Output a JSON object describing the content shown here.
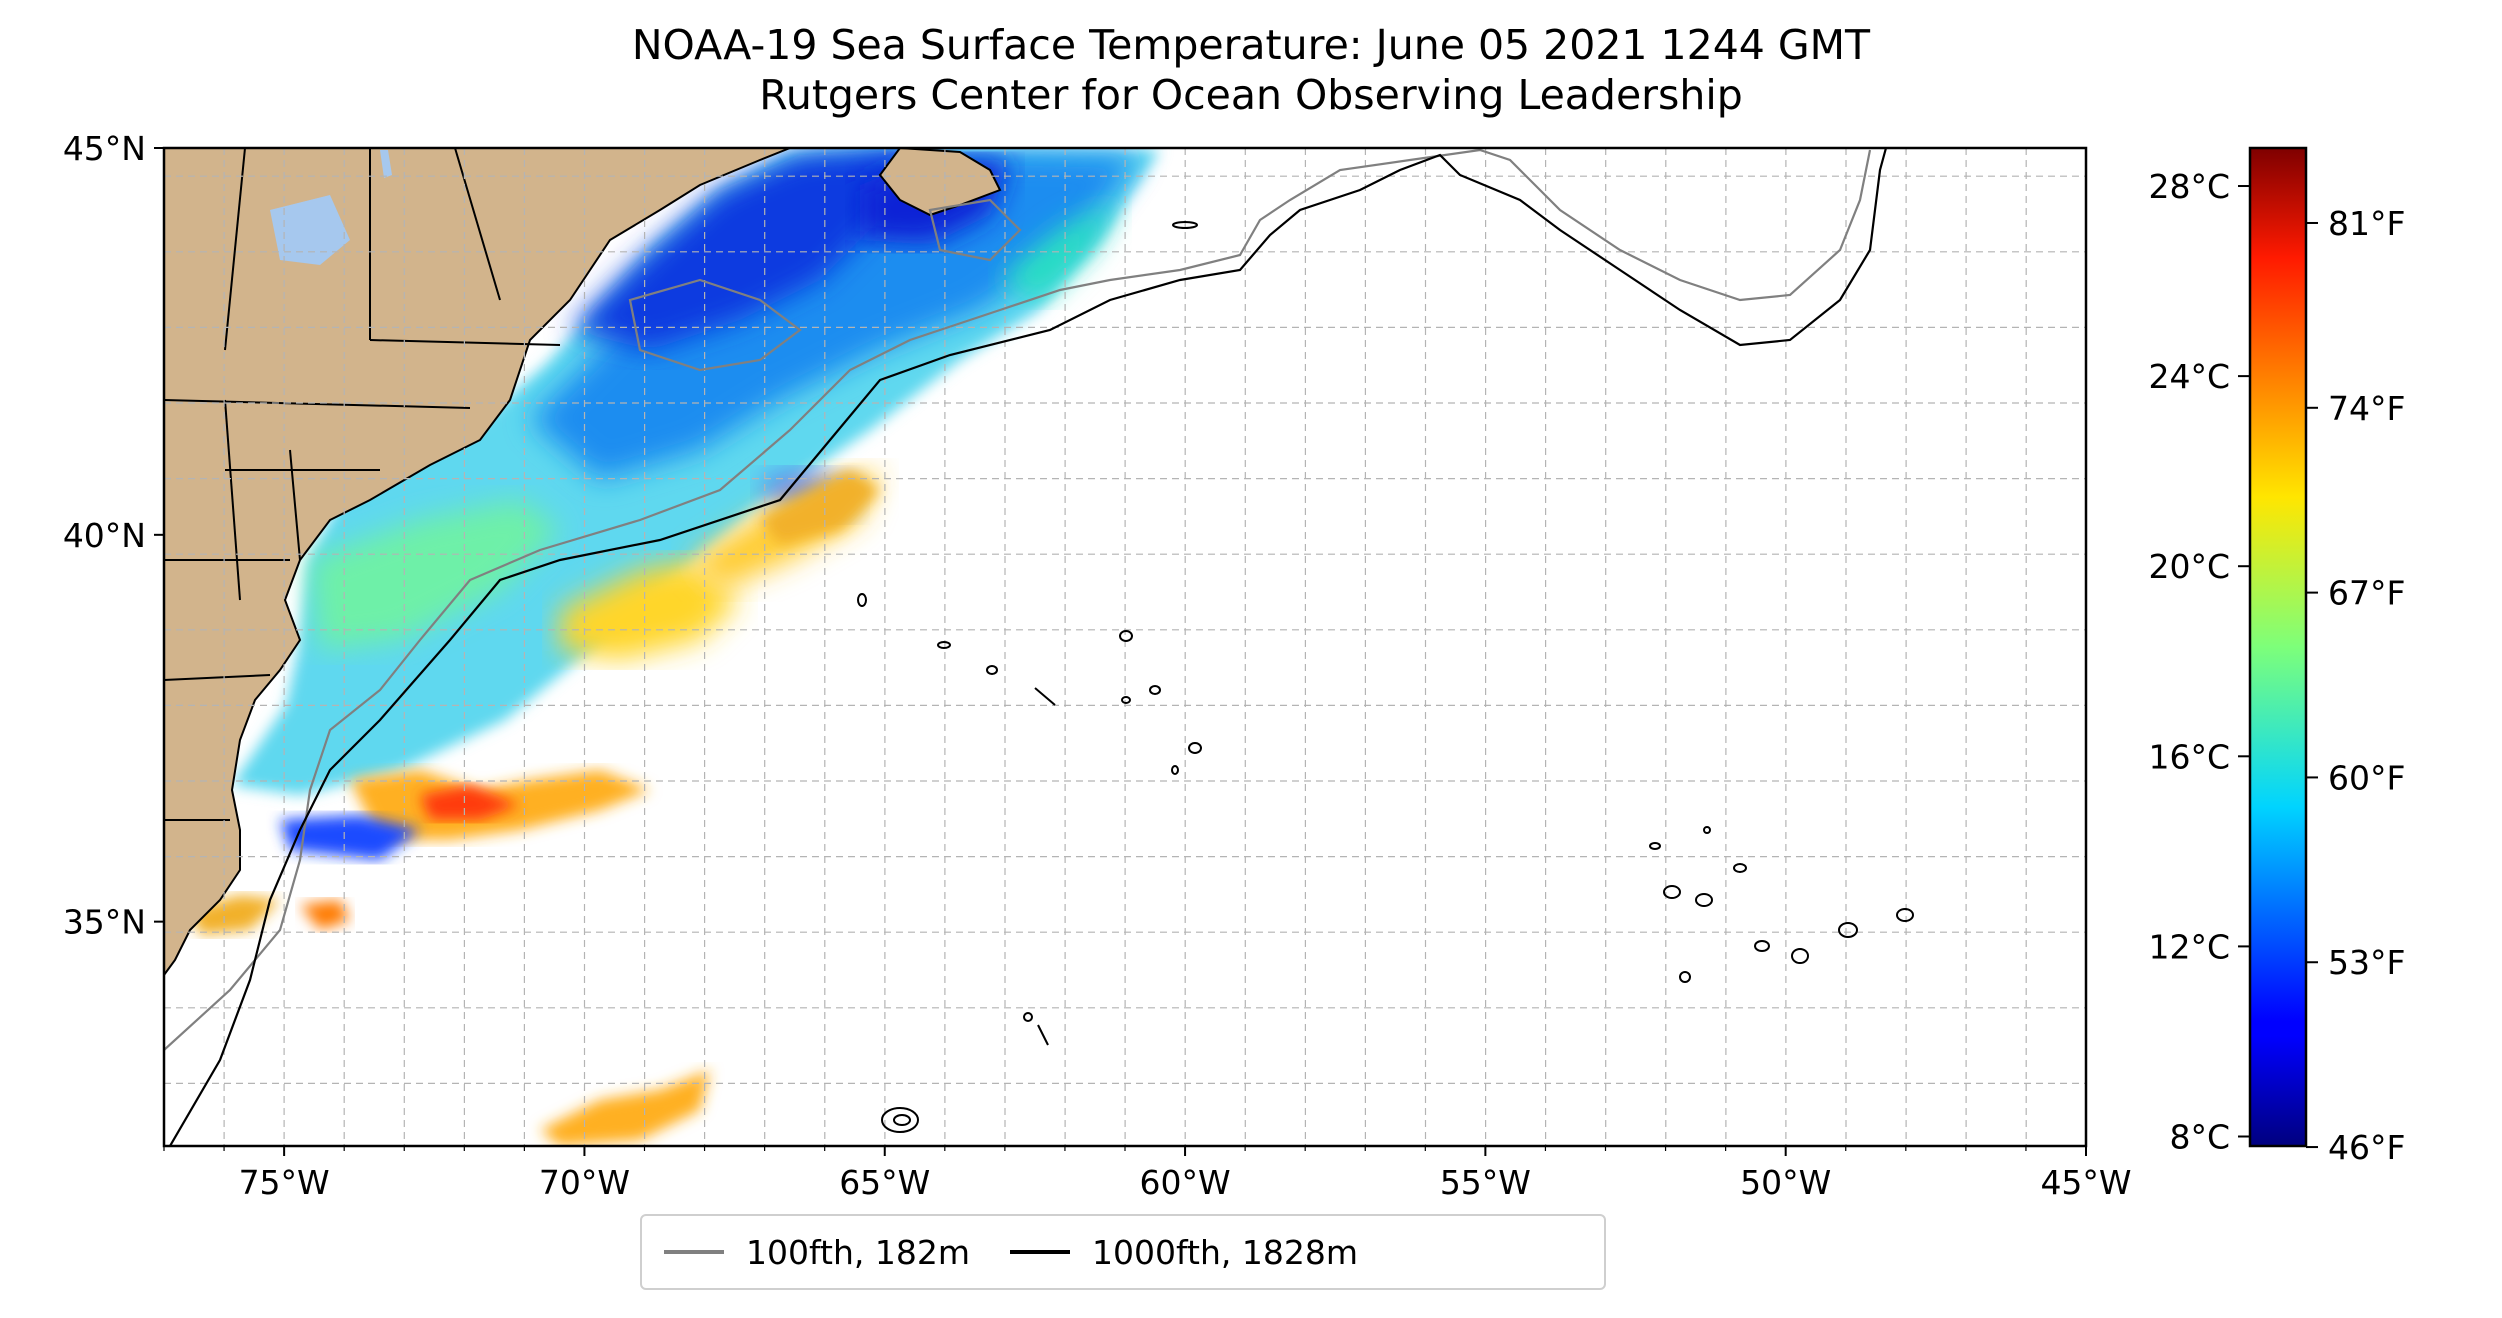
{
  "title": {
    "line1": "NOAA-19 Sea Surface Temperature: June 05 2021 1244 GMT",
    "line2": "Rutgers Center for Ocean Observing Leadership"
  },
  "map": {
    "lon_range": [
      -77,
      -45
    ],
    "lat_range": [
      32.1,
      45
    ],
    "lon_ticks": [
      -75,
      -70,
      -65,
      -60,
      -55,
      -50,
      -45
    ],
    "lon_tick_labels": [
      "75°W",
      "70°W",
      "65°W",
      "60°W",
      "55°W",
      "50°W",
      "45°W"
    ],
    "lat_ticks": [
      35,
      40,
      45
    ],
    "lat_tick_labels": [
      "35°N",
      "40°N",
      "45°N"
    ],
    "gridlines": "dashed, 1° spacing",
    "land_color": "#d2b48c",
    "ocean_color": "#ffffff",
    "lake_color": "#a6c8ee"
  },
  "colorbar": {
    "colormap": "jet",
    "celsius_range": [
      7.8,
      28.8
    ],
    "celsius_ticks": [
      8,
      12,
      16,
      20,
      24,
      28
    ],
    "celsius_tick_labels": [
      "8°C",
      "12°C",
      "16°C",
      "20°C",
      "24°C",
      "28°C"
    ],
    "fahrenheit_ticks": [
      46,
      53,
      60,
      67,
      74,
      81
    ],
    "fahrenheit_tick_labels": [
      "46°F",
      "53°F",
      "60°F",
      "67°F",
      "74°F",
      "81°F"
    ]
  },
  "legend": {
    "items": [
      {
        "label": "100fth, 182m",
        "color": "#808080"
      },
      {
        "label": "1000fth, 1828m",
        "color": "#000000"
      }
    ]
  }
}
